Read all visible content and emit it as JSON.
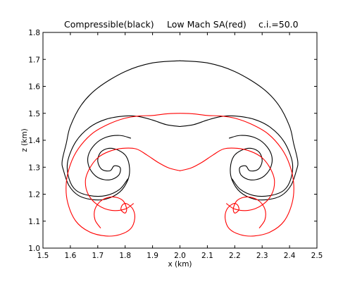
{
  "chart_data": {
    "type": "line",
    "title_parts": [
      "Compressible(black)",
      "Low Mach SA(red)",
      "c.i.=50.0"
    ],
    "xlabel": "x (km)",
    "ylabel": "z (km)",
    "xlim": [
      1.5,
      2.5
    ],
    "ylim": [
      1.0,
      1.8
    ],
    "xticks": [
      "1.5",
      "1.6",
      "1.7",
      "1.8",
      "1.9",
      "2.0",
      "2.1",
      "2.2",
      "2.3",
      "2.4",
      "2.5"
    ],
    "yticks": [
      "1.0",
      "1.1",
      "1.2",
      "1.3",
      "1.4",
      "1.5",
      "1.6",
      "1.7",
      "1.8"
    ],
    "grid": false,
    "colors": {
      "compressible": "#000000",
      "lowmach": "#ff0000"
    },
    "series": [
      {
        "name": "Compressible",
        "color": "#000000",
        "segments": [
          {
            "kind": "dome",
            "points": [
              [
                2.0,
                1.695
              ],
              [
                2.1,
                1.687
              ],
              [
                2.2,
                1.655
              ],
              [
                2.3,
                1.594
              ],
              [
                2.36,
                1.531
              ],
              [
                2.4,
                1.452
              ],
              [
                2.415,
                1.388
              ],
              [
                2.43,
                1.322
              ],
              [
                2.425,
                1.288
              ],
              [
                2.405,
                1.232
              ],
              [
                2.37,
                1.195
              ],
              [
                2.32,
                1.18
              ],
              [
                2.27,
                1.182
              ],
              [
                2.22,
                1.208
              ],
              [
                2.19,
                1.253
              ],
              [
                2.184,
                1.297
              ],
              [
                2.196,
                1.34
              ],
              [
                2.225,
                1.363
              ],
              [
                2.26,
                1.37
              ],
              [
                2.29,
                1.355
              ],
              [
                2.3,
                1.322
              ],
              [
                2.285,
                1.292
              ],
              [
                2.255,
                1.287
              ],
              [
                2.24,
                1.305
              ],
              [
                2.218,
                1.298
              ],
              [
                2.224,
                1.27
              ],
              [
                2.257,
                1.253
              ],
              [
                2.3,
                1.262
              ],
              [
                2.33,
                1.297
              ],
              [
                2.335,
                1.342
              ],
              [
                2.31,
                1.385
              ],
              [
                2.27,
                1.411
              ],
              [
                2.22,
                1.418
              ],
              [
                2.18,
                1.408
              ]
            ]
          },
          {
            "kind": "inner",
            "points": [
              [
                2.0,
                1.451
              ],
              [
                2.05,
                1.458
              ],
              [
                2.1,
                1.475
              ],
              [
                2.15,
                1.488
              ],
              [
                2.2,
                1.49
              ],
              [
                2.27,
                1.478
              ],
              [
                2.33,
                1.448
              ],
              [
                2.38,
                1.395
              ],
              [
                2.41,
                1.32
              ],
              [
                2.405,
                1.258
              ],
              [
                2.38,
                1.215
              ],
              [
                2.33,
                1.195
              ],
              [
                2.27,
                1.195
              ],
              [
                2.22,
                1.218
              ],
              [
                2.19,
                1.257
              ]
            ]
          }
        ]
      },
      {
        "name": "Low Mach SA",
        "color": "#ff0000",
        "segments": [
          {
            "kind": "outer",
            "points": [
              [
                2.0,
                1.5
              ],
              [
                2.05,
                1.498
              ],
              [
                2.1,
                1.492
              ],
              [
                2.15,
                1.49
              ],
              [
                2.2,
                1.482
              ],
              [
                2.26,
                1.46
              ],
              [
                2.32,
                1.425
              ],
              [
                2.37,
                1.37
              ],
              [
                2.4,
                1.31
              ],
              [
                2.415,
                1.24
              ],
              [
                2.41,
                1.17
              ],
              [
                2.38,
                1.1
              ],
              [
                2.33,
                1.06
              ],
              [
                2.27,
                1.045
              ],
              [
                2.22,
                1.05
              ],
              [
                2.18,
                1.072
              ],
              [
                2.165,
                1.11
              ],
              [
                2.172,
                1.145
              ],
              [
                2.195,
                1.165
              ],
              [
                2.21,
                1.16
              ],
              [
                2.215,
                1.142
              ],
              [
                2.2,
                1.13
              ],
              [
                2.195,
                1.148
              ],
              [
                2.21,
                1.178
              ],
              [
                2.245,
                1.19
              ],
              [
                2.285,
                1.178
              ],
              [
                2.31,
                1.145
              ],
              [
                2.31,
                1.105
              ],
              [
                2.29,
                1.075
              ]
            ]
          },
          {
            "kind": "inner",
            "points": [
              [
                2.0,
                1.287
              ],
              [
                2.04,
                1.297
              ],
              [
                2.08,
                1.318
              ],
              [
                2.12,
                1.345
              ],
              [
                2.16,
                1.368
              ],
              [
                2.21,
                1.37
              ],
              [
                2.26,
                1.358
              ],
              [
                2.3,
                1.335
              ],
              [
                2.33,
                1.295
              ],
              [
                2.345,
                1.25
              ],
              [
                2.335,
                1.2
              ],
              [
                2.3,
                1.16
              ],
              [
                2.25,
                1.14
              ],
              [
                2.2,
                1.145
              ],
              [
                2.17,
                1.165
              ]
            ]
          }
        ]
      }
    ]
  }
}
